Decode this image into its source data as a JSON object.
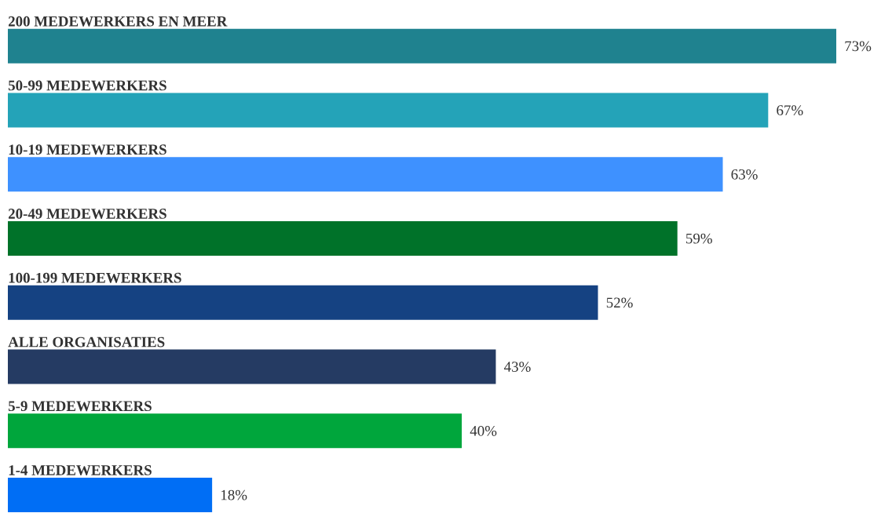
{
  "chart_data": {
    "type": "bar",
    "orientation": "horizontal",
    "categories": [
      "200 MEDEWERKERS EN MEER",
      "50-99 MEDEWERKERS",
      "10-19 MEDEWERKERS",
      "20-49 MEDEWERKERS",
      "100-199 MEDEWERKERS",
      "ALLE ORGANISATIES",
      "5-9 MEDEWERKERS",
      "1-4 MEDEWERKERS"
    ],
    "values": [
      73,
      67,
      63,
      59,
      52,
      43,
      40,
      18
    ],
    "value_labels": [
      "73%",
      "67%",
      "63%",
      "59%",
      "52%",
      "43%",
      "40%",
      "18%"
    ],
    "colors": [
      "#1f828f",
      "#24a3b8",
      "#3e91ff",
      "#007229",
      "#154282",
      "#253b63",
      "#00a63c",
      "#006ef5"
    ]
  }
}
